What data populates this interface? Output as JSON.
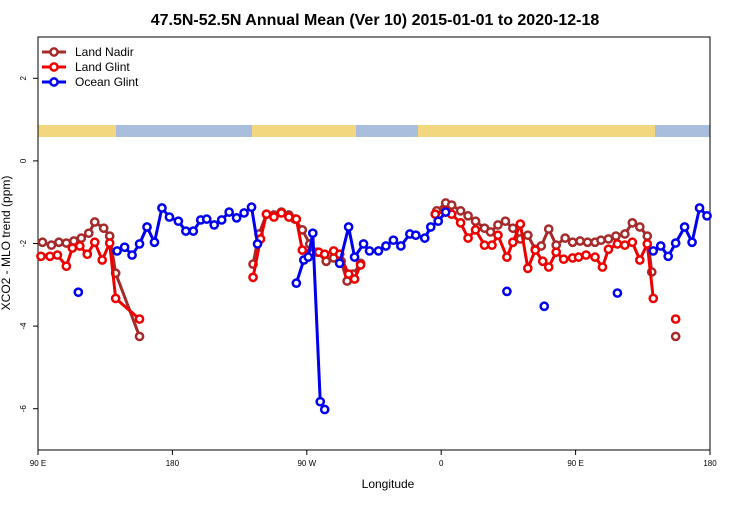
{
  "chart_data": {
    "type": "line",
    "title": "47.5N-52.5N Annual Mean (Ver 10)   2015-01-01 to 2020-12-18",
    "x_label": "Longitude",
    "y_label": "XCO2 - MLO trend (ppm)",
    "xlim": [
      90,
      540
    ],
    "xticks": [
      {
        "value": 90,
        "label": "90 E"
      },
      {
        "value": 180,
        "label": "180"
      },
      {
        "value": 270,
        "label": "90 W"
      },
      {
        "value": 360,
        "label": "0"
      },
      {
        "value": 450,
        "label": "90 E"
      },
      {
        "value": 540,
        "label": "180"
      }
    ],
    "ylim": [
      -7,
      3
    ],
    "yticks": [
      -6,
      -4,
      -2,
      0,
      2
    ],
    "legend": "topleft",
    "series": [
      {
        "name": "Land Nadir",
        "color": "#a52a2a",
        "x": [
          93,
          99,
          104,
          109,
          114,
          119,
          124,
          128,
          134,
          138,
          142,
          158,
          null,
          234,
          238,
          243,
          248,
          253,
          258,
          262,
          267,
          272,
          277,
          283,
          288,
          293,
          297,
          301,
          306,
          null,
          357,
          363,
          367,
          373,
          378,
          383,
          389,
          393,
          398,
          403,
          408,
          413,
          418,
          423,
          427,
          432,
          437,
          443,
          448,
          453,
          458,
          463,
          467,
          472,
          477,
          483,
          488,
          493,
          498,
          501,
          null,
          517
        ],
        "values": [
          -1.97,
          -2.04,
          -1.97,
          -1.99,
          -1.94,
          -1.87,
          -1.75,
          -1.48,
          -1.63,
          -1.82,
          -2.72,
          -4.25,
          null,
          -2.5,
          -1.77,
          -1.29,
          -1.31,
          -1.24,
          -1.31,
          -1.41,
          -1.67,
          -2.01,
          -2.21,
          -2.43,
          -2.35,
          -2.43,
          -2.91,
          -2.74,
          -2.48,
          null,
          -1.21,
          -1.02,
          -1.07,
          -1.21,
          -1.33,
          -1.46,
          -1.63,
          -1.72,
          -1.55,
          -1.46,
          -1.63,
          -1.89,
          -1.8,
          -2.14,
          -2.06,
          -1.65,
          -2.04,
          -1.87,
          -1.97,
          -1.94,
          -1.97,
          -1.97,
          -1.92,
          -1.89,
          -1.82,
          -1.77,
          -1.5,
          -1.6,
          -1.82,
          -2.69,
          null,
          -4.25
        ]
      },
      {
        "name": "Land Glint",
        "color": "#ee0000",
        "x": [
          92,
          98,
          103,
          109,
          113,
          118,
          123,
          128,
          133,
          138,
          142,
          158,
          null,
          234,
          239,
          243,
          248,
          253,
          258,
          263,
          267,
          272,
          278,
          282,
          288,
          292,
          298,
          302,
          306,
          null,
          356,
          363,
          367,
          373,
          378,
          383,
          389,
          394,
          398,
          404,
          408,
          413,
          418,
          423,
          428,
          432,
          437,
          442,
          448,
          452,
          457,
          463,
          468,
          472,
          478,
          483,
          488,
          493,
          498,
          502,
          null,
          517
        ],
        "values": [
          -2.31,
          -2.31,
          -2.28,
          -2.55,
          -2.11,
          -2.06,
          -2.26,
          -1.97,
          -2.4,
          -1.99,
          -3.33,
          -3.83,
          null,
          -2.82,
          -1.89,
          -1.29,
          -1.36,
          -1.26,
          -1.36,
          -1.41,
          -2.16,
          -2.23,
          -2.21,
          -2.26,
          -2.18,
          -2.26,
          -2.74,
          -2.86,
          -2.52,
          null,
          -1.29,
          -1.21,
          -1.29,
          -1.5,
          -1.87,
          -1.67,
          -2.04,
          -2.04,
          -1.8,
          -2.33,
          -1.97,
          -1.53,
          -2.6,
          -2.16,
          -2.43,
          -2.57,
          -2.21,
          -2.38,
          -2.35,
          -2.33,
          -2.28,
          -2.33,
          -2.57,
          -2.14,
          -2.01,
          -2.04,
          -1.97,
          -2.4,
          -2.01,
          -3.33,
          null,
          -3.83
        ]
      },
      {
        "name": "Ocean Glint",
        "color": "#0000ee",
        "x": [
          117,
          null,
          143,
          148,
          153,
          158,
          163,
          168,
          173,
          178,
          184,
          189,
          194,
          199,
          203,
          208,
          213,
          218,
          223,
          228,
          233,
          237,
          null,
          263,
          268,
          271,
          274,
          279,
          282,
          null,
          292,
          298,
          302,
          308,
          312,
          318,
          323,
          328,
          333,
          339,
          343,
          349,
          353,
          358,
          363,
          null,
          404,
          null,
          429,
          null,
          478,
          null,
          502,
          507,
          512,
          517,
          523,
          528,
          533,
          538
        ],
        "values": [
          -3.18,
          null,
          -2.18,
          -2.09,
          -2.28,
          -2.01,
          -1.6,
          -1.97,
          -1.14,
          -1.36,
          -1.46,
          -1.7,
          -1.7,
          -1.43,
          -1.41,
          -1.55,
          -1.43,
          -1.24,
          -1.38,
          -1.26,
          -1.12,
          -2.01,
          null,
          -2.96,
          -2.4,
          -2.33,
          -1.75,
          -5.83,
          -6.02,
          null,
          -2.48,
          -1.6,
          -2.33,
          -2.01,
          -2.18,
          -2.18,
          -2.06,
          -1.92,
          -2.06,
          -1.77,
          -1.8,
          -1.87,
          -1.6,
          -1.46,
          -1.24,
          null,
          -3.16,
          null,
          -3.52,
          null,
          -3.2,
          null,
          -2.18,
          -2.06,
          -2.31,
          -1.99,
          -1.6,
          -1.97,
          -1.14,
          -1.33
        ]
      }
    ]
  }
}
